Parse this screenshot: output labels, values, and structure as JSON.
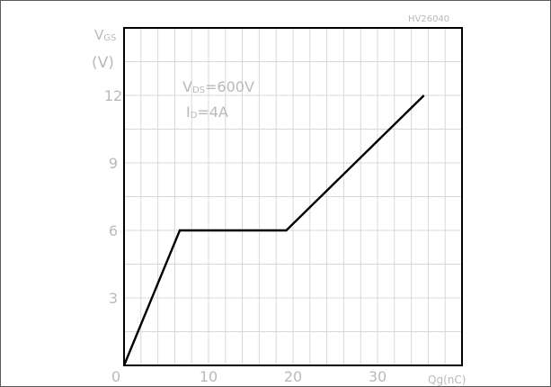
{
  "chart_data": {
    "type": "line",
    "watermark": "HV26040",
    "ylabel_line1": "V",
    "ylabel_sub": "GS",
    "ylabel_line2": "(V)",
    "xlabel": "Qg(nC)",
    "origin_label": "0",
    "xlim": [
      0,
      40
    ],
    "ylim": [
      0,
      15
    ],
    "x_ticks": [
      10,
      20,
      30
    ],
    "y_ticks": [
      3,
      6,
      9,
      12
    ],
    "annotation_vds_main": "V",
    "annotation_vds_sub": "DS",
    "annotation_vds_value": "=600V",
    "annotation_id_main": "I",
    "annotation_id_sub": "D",
    "annotation_id_value": "=4A",
    "grid": true,
    "series": [
      {
        "x": [
          0,
          6.6,
          19.2,
          35.5
        ],
        "y": [
          0,
          6,
          6,
          12
        ]
      }
    ],
    "colors": {
      "curve": "#000000",
      "grid": "#d8d8d8",
      "labels": "#b9b9b9",
      "axes": "#000000"
    }
  }
}
